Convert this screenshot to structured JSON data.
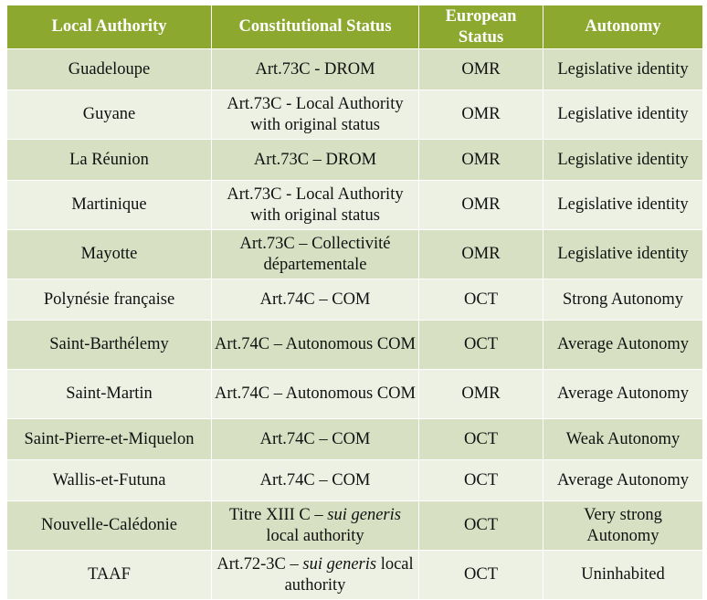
{
  "headers": [
    "Local Authority",
    "Constitutional Status",
    "European Status",
    "Autonomy"
  ],
  "rows": [
    {
      "authority": "Guadeloupe",
      "status": "Art.73C - DROM",
      "eu": "OMR",
      "autonomy": "Legislative identity"
    },
    {
      "authority": "Guyane",
      "status": "Art.73C - Local Authority with original status",
      "eu": "OMR",
      "autonomy": "Legislative identity"
    },
    {
      "authority": "La Réunion",
      "status": "Art.73C – DROM",
      "eu": "OMR",
      "autonomy": "Legislative identity"
    },
    {
      "authority": "Martinique",
      "status": "Art.73C - Local Authority with original status",
      "eu": "OMR",
      "autonomy": "Legislative identity"
    },
    {
      "authority": "Mayotte",
      "status": "Art.73C – Collectivité départementale",
      "eu": "OMR",
      "autonomy": "Legislative identity"
    },
    {
      "authority": "Polynésie française",
      "status": "Art.74C – COM",
      "eu": "OCT",
      "autonomy": "Strong Autonomy"
    },
    {
      "authority": "Saint-Barthélemy",
      "status": "Art.74C – Autonomous COM",
      "eu": "OCT",
      "autonomy": "Average Autonomy"
    },
    {
      "authority": "Saint-Martin",
      "status": "Art.74C – Autonomous COM",
      "eu": "OMR",
      "autonomy": "Average Autonomy"
    },
    {
      "authority": "Saint-Pierre-et-Miquelon",
      "status": "Art.74C – COM",
      "eu": "OCT",
      "autonomy": "Weak Autonomy"
    },
    {
      "authority": "Wallis-et-Futuna",
      "status": "Art.74C – COM",
      "eu": "OCT",
      "autonomy": "Average Autonomy"
    },
    {
      "authority": "Nouvelle-Calédonie",
      "status_prefix": "Titre XIII C – ",
      "status_italic": "sui generis",
      "status_suffix": " local authority",
      "eu": "OCT",
      "autonomy": "Very strong Autonomy"
    },
    {
      "authority": "TAAF",
      "status_prefix": "Art.72-3C – ",
      "status_italic": "sui generis",
      "status_suffix": " local authority",
      "eu": "OCT",
      "autonomy": "Uninhabited"
    }
  ]
}
